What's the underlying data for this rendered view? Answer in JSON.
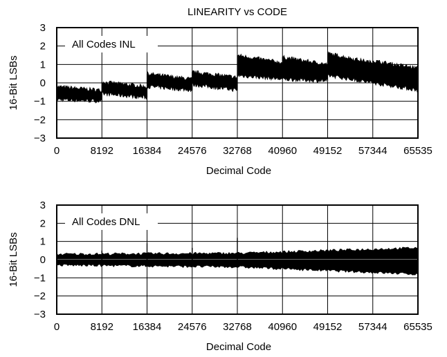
{
  "chart_data": [
    {
      "type": "line",
      "title": "LINEARITY vs CODE",
      "xlabel": "Decimal Code",
      "ylabel": "16-Bit LSBs",
      "annotation": "All Codes INL",
      "xlim": [
        0,
        65535
      ],
      "ylim": [
        -3,
        3
      ],
      "xticks": [
        0,
        8192,
        16384,
        24576,
        32768,
        40960,
        49152,
        57344,
        65535
      ],
      "yticks": [
        3,
        2,
        1,
        0,
        -1,
        -2,
        -3
      ],
      "xtick_labels": [
        "0",
        "8192",
        "16384",
        "24576",
        "32768",
        "40960",
        "49152",
        "57344",
        "65535"
      ],
      "ytick_labels": [
        "3",
        "2",
        "1",
        "0",
        "−1",
        "−2",
        "−3"
      ],
      "grid": true,
      "series": [
        {
          "color": "#000000",
          "segments": [
            {
              "x0": 0,
              "x1": 8192,
              "top": [
                -0.2,
                -0.4
              ],
              "bottom": [
                -0.9,
                -1.0
              ]
            },
            {
              "x0": 8192,
              "x1": 16384,
              "top": [
                0.05,
                -0.2
              ],
              "bottom": [
                -0.6,
                -0.8
              ]
            },
            {
              "x0": 16384,
              "x1": 24576,
              "top": [
                0.5,
                0.2
              ],
              "bottom": [
                -0.2,
                -0.4
              ]
            },
            {
              "x0": 24576,
              "x1": 32768,
              "top": [
                0.6,
                0.3
              ],
              "bottom": [
                -0.1,
                -0.4
              ]
            },
            {
              "x0": 32768,
              "x1": 40960,
              "top": [
                1.5,
                1.1
              ],
              "bottom": [
                0.4,
                0.2
              ]
            },
            {
              "x0": 40960,
              "x1": 49152,
              "top": [
                1.4,
                1.0
              ],
              "bottom": [
                0.2,
                0.1
              ]
            },
            {
              "x0": 49152,
              "x1": 57344,
              "top": [
                1.6,
                1.1
              ],
              "bottom": [
                0.4,
                0.0
              ]
            },
            {
              "x0": 57344,
              "x1": 65535,
              "top": [
                1.2,
                0.8
              ],
              "bottom": [
                0.0,
                -0.4
              ]
            }
          ]
        }
      ]
    },
    {
      "type": "line",
      "title": "",
      "xlabel": "Decimal Code",
      "ylabel": "16-Bit LSBs",
      "annotation": "All Codes DNL",
      "xlim": [
        0,
        65535
      ],
      "ylim": [
        -3,
        3
      ],
      "xticks": [
        0,
        8192,
        16384,
        24576,
        32768,
        40960,
        49152,
        57344,
        65535
      ],
      "yticks": [
        3,
        2,
        1,
        0,
        -1,
        -2,
        -3
      ],
      "xtick_labels": [
        "0",
        "8192",
        "16384",
        "24576",
        "32768",
        "40960",
        "49152",
        "57344",
        "65535"
      ],
      "ytick_labels": [
        "3",
        "2",
        "1",
        "0",
        "−1",
        "−2",
        "−3"
      ],
      "grid": true,
      "series": [
        {
          "color": "#000000",
          "band_top": [
            [
              0,
              0.3
            ],
            [
              32768,
              0.35
            ],
            [
              65535,
              0.65
            ]
          ],
          "band_bottom": [
            [
              0,
              -0.3
            ],
            [
              32768,
              -0.4
            ],
            [
              65535,
              -0.8
            ]
          ],
          "spikes": [
            [
              8192,
              0.5
            ],
            [
              16384,
              0.9
            ],
            [
              24576,
              0.65
            ],
            [
              32768,
              1.2
            ]
          ]
        }
      ]
    }
  ]
}
